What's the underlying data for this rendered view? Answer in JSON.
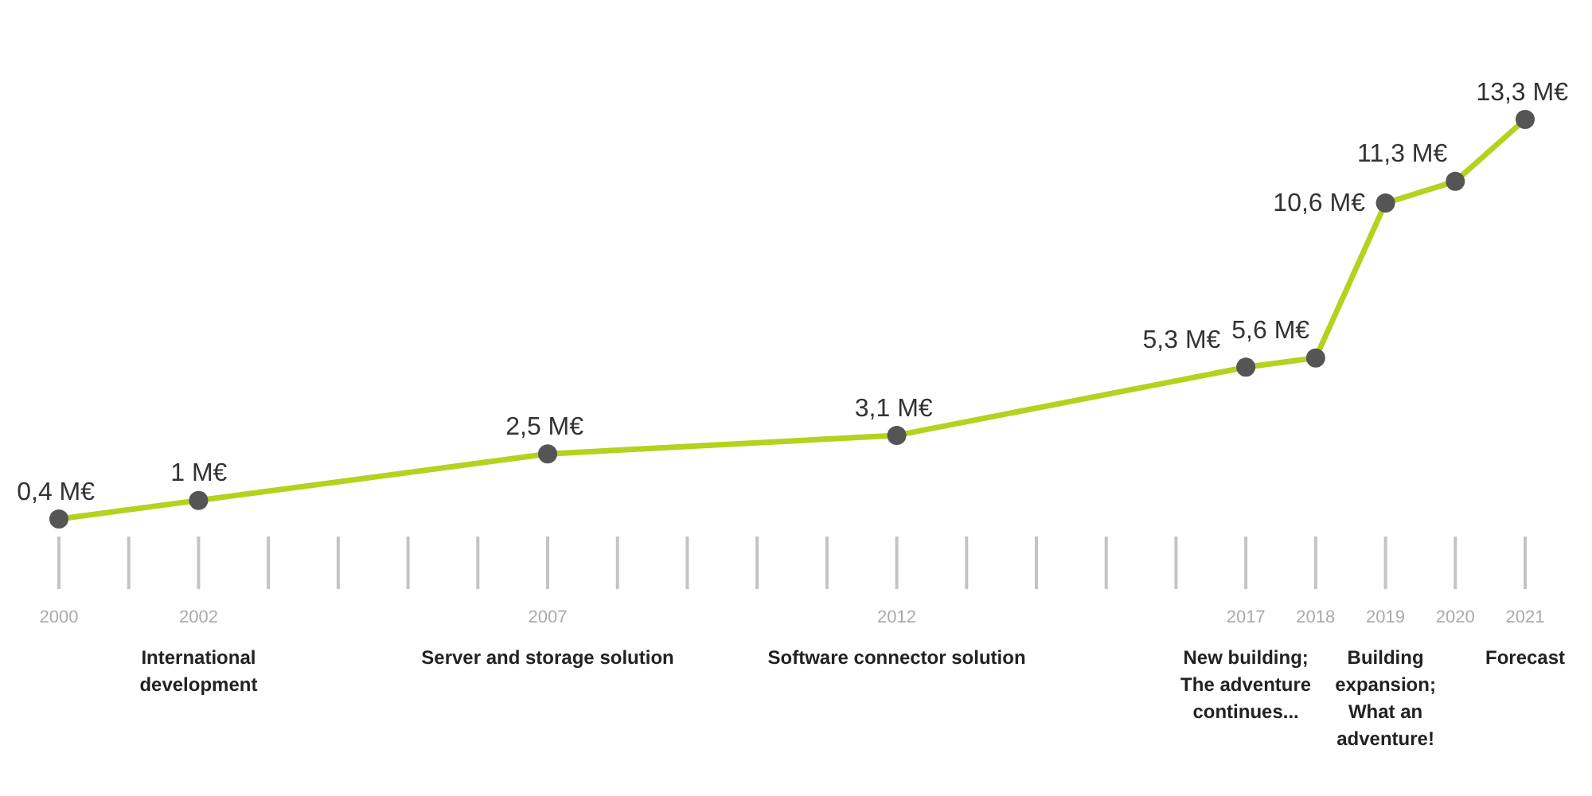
{
  "chart_data": {
    "type": "line",
    "x": [
      2000,
      2002,
      2007,
      2012,
      2017,
      2018,
      2019,
      2020,
      2021
    ],
    "series": [
      {
        "color": "#b4d21e",
        "values": [
          0.4,
          1,
          2.5,
          3.1,
          5.3,
          5.6,
          10.6,
          11.3,
          13.3
        ],
        "value_labels": [
          "0,4 M€",
          "1 M€",
          "2,5 M€",
          "3,1 M€",
          "5,3 M€",
          "5,6 M€",
          "10,6 M€",
          "11,3 M€",
          "13,3 M€"
        ]
      }
    ],
    "xlim": [
      2000,
      2021
    ],
    "xticks": [
      2000,
      {
        "value": 2001,
        "label": null
      },
      {
        "value": 2002,
        "label": "2002\nInternational\ndevelopment"
      },
      {
        "value": 2003,
        "label": null
      },
      {
        "value": 2004,
        "label": null
      },
      {
        "value": 2005,
        "label": null
      },
      {
        "value": 2006,
        "label": null
      },
      {
        "value": 2007,
        "label": "2007\nServer and storage solution"
      },
      {
        "value": 2008,
        "label": null
      },
      {
        "value": 2009,
        "label": null
      },
      {
        "value": 2010,
        "label": null
      },
      {
        "value": 2011,
        "label": null
      },
      {
        "value": 2012,
        "label": "2012\nSoftware connector solution"
      },
      {
        "value": 2013,
        "label": null
      },
      {
        "value": 2014,
        "label": null
      },
      {
        "value": 2015,
        "label": null
      },
      {
        "value": 2016,
        "label": null
      },
      {
        "value": 2017,
        "label": "2017\nNew building;\nThe adventure\ncontinues..."
      },
      2018,
      {
        "value": 2019,
        "label": "2019\nBuilding\nexpansion;\nWhat an\nadventure!"
      },
      2020,
      {
        "value": 2021,
        "label": "2021\nForecast"
      }
    ],
    "tick_labels": "x",
    "marker": "circle",
    "line_style": "solid"
  }
}
